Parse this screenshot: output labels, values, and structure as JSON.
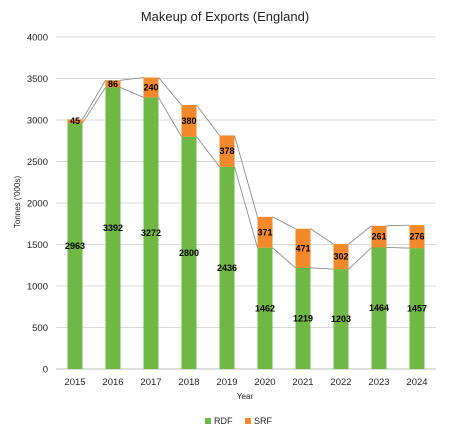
{
  "chart_data": {
    "type": "bar",
    "stacked": true,
    "title": "Makeup of Exports (England)",
    "xlabel": "Year",
    "ylabel": "Tonnes ('000s)",
    "ylim": [
      0,
      4000
    ],
    "yticks": [
      0,
      500,
      1000,
      1500,
      2000,
      2500,
      3000,
      3500,
      4000
    ],
    "grid": true,
    "legend_position": "bottom",
    "categories": [
      "2015",
      "2016",
      "2017",
      "2018",
      "2019",
      "2020",
      "2021",
      "2022",
      "2023",
      "2024"
    ],
    "series": [
      {
        "name": "RDF",
        "color": "#70b846",
        "values": [
          2963,
          3392,
          3272,
          2800,
          2436,
          1462,
          1219,
          1203,
          1464,
          1457
        ]
      },
      {
        "name": "SRF",
        "color": "#f3892b",
        "values": [
          45,
          86,
          240,
          380,
          378,
          371,
          471,
          302,
          261,
          276
        ]
      }
    ],
    "series_lines": true
  }
}
